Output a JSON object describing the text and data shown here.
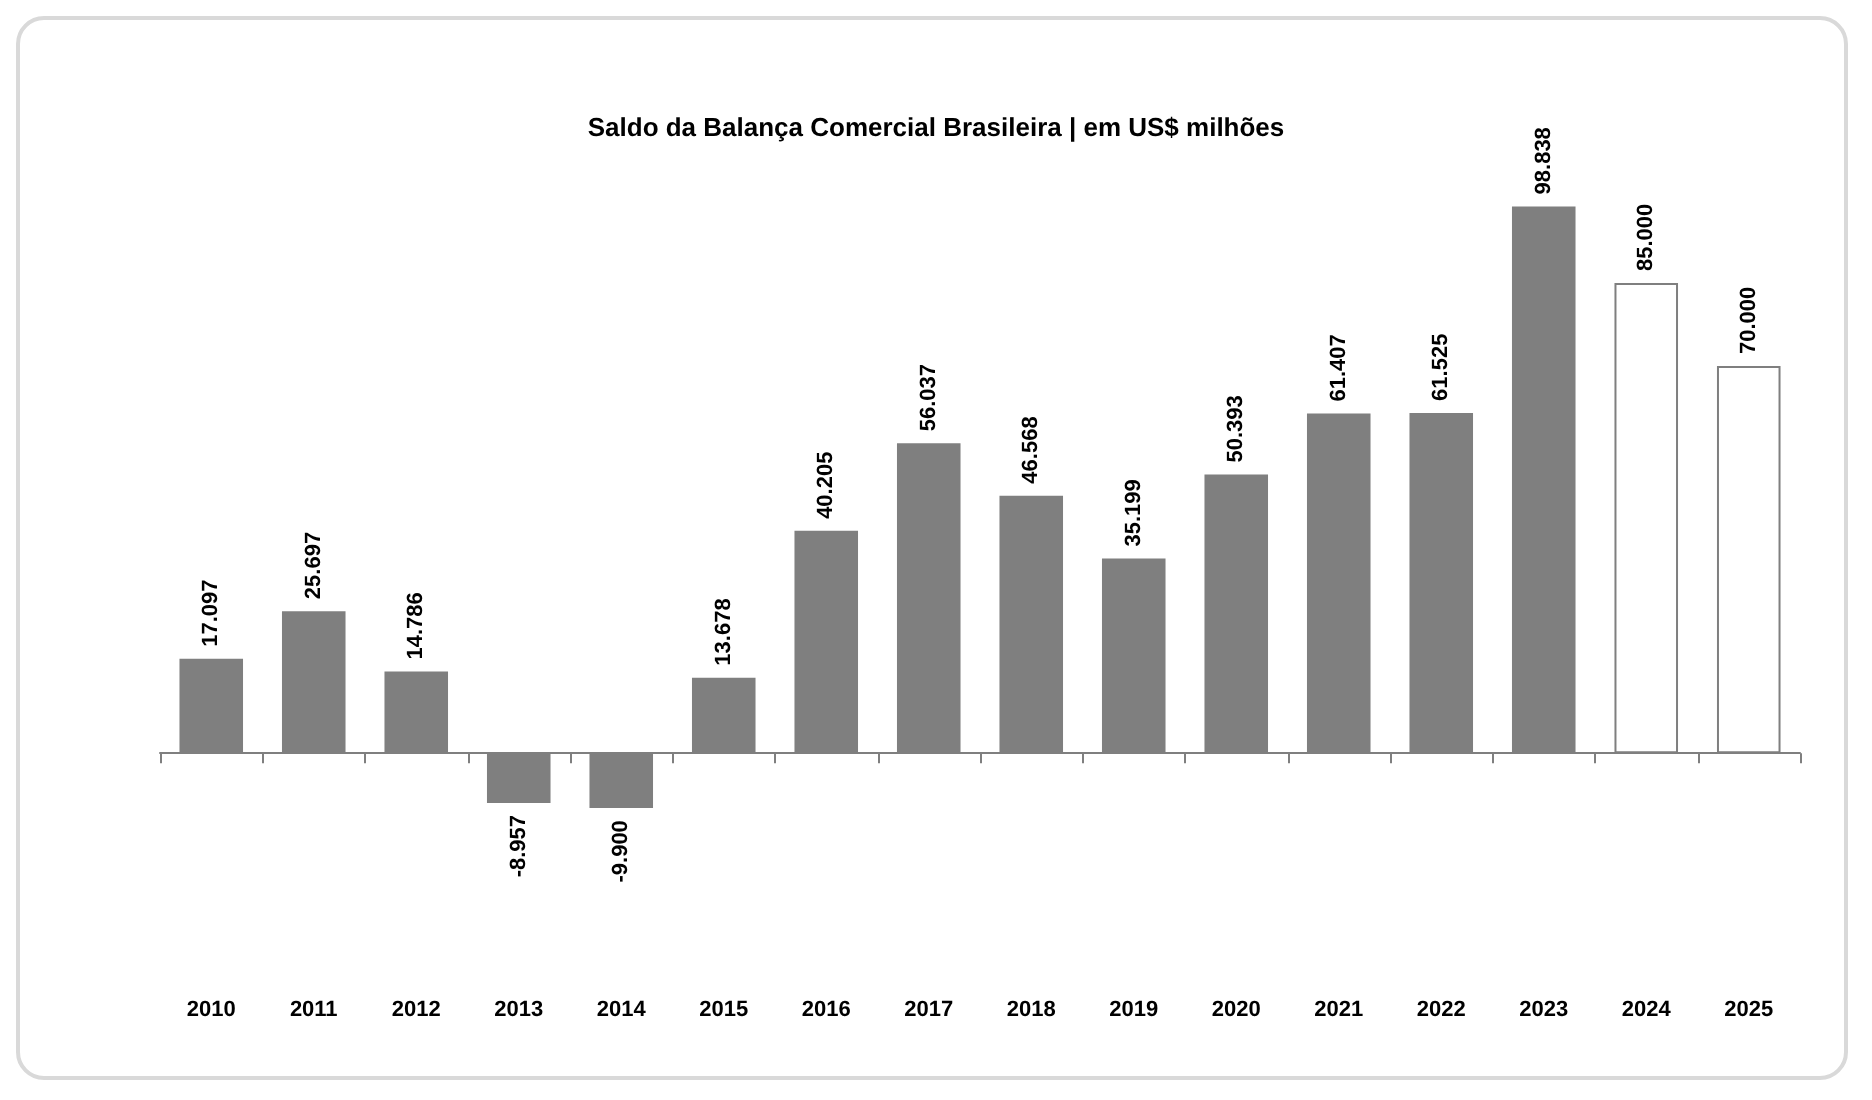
{
  "chart_data": {
    "type": "bar",
    "title": "Saldo da Balança Comercial Brasileira | em US$ milhões",
    "categories": [
      "2010",
      "2011",
      "2012",
      "2013",
      "2014",
      "2015",
      "2016",
      "2017",
      "2018",
      "2019",
      "2020",
      "2021",
      "2022",
      "2023",
      "2024",
      "2025"
    ],
    "values": [
      17097,
      25697,
      14786,
      -8957,
      -9900,
      13678,
      40205,
      56037,
      46568,
      35199,
      50393,
      61407,
      61525,
      98838,
      85000,
      70000
    ],
    "value_labels": [
      "17.097",
      "25.697",
      "14.786",
      "-8.957",
      "-9.900",
      "13.678",
      "40.205",
      "56.037",
      "46.568",
      "35.199",
      "50.393",
      "61.407",
      "61.525",
      "98.838",
      "85.000",
      "70.000"
    ],
    "colors": [
      "#7f7f7f",
      "#7f7f7f",
      "#7f7f7f",
      "#7f7f7f",
      "#7f7f7f",
      "#7f7f7f",
      "#7f7f7f",
      "#7f7f7f",
      "#7f7f7f",
      "#7f7f7f",
      "#7f7f7f",
      "#7f7f7f",
      "#7f7f7f",
      "#7f7f7f",
      "#ffffff",
      "#ffffff"
    ]
  }
}
